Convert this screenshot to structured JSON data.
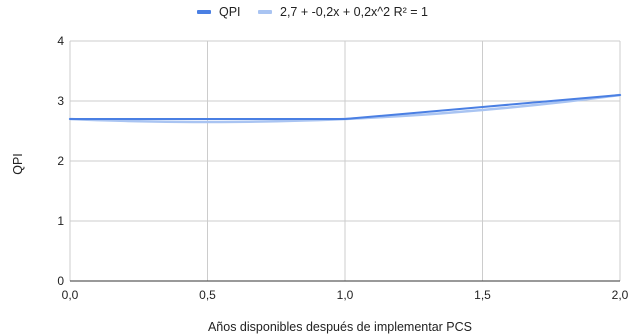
{
  "chart_data": {
    "type": "line",
    "title": "",
    "xlabel": "Años disponibles después de implementar PCS",
    "ylabel": "QPI",
    "x": [
      0.0,
      1.0,
      1.5,
      2.0
    ],
    "series": [
      {
        "name": "QPI",
        "values": [
          2.7,
          2.7,
          2.9,
          3.1
        ],
        "color": "#4a7fe3"
      },
      {
        "name": "2,7 + -0,2x + 0,2x^2 R² = 1",
        "values": [
          2.7,
          2.7,
          2.85,
          3.1
        ],
        "color": "#a9c4f2",
        "trendline": true
      }
    ],
    "xlim": [
      0.0,
      2.0
    ],
    "ylim": [
      0,
      4
    ],
    "xticks": [
      "0,0",
      "0,5",
      "1,0",
      "1,5",
      "2,0"
    ],
    "yticks": [
      "0",
      "1",
      "2",
      "3",
      "4"
    ],
    "grid": true,
    "legend_position": "top"
  }
}
